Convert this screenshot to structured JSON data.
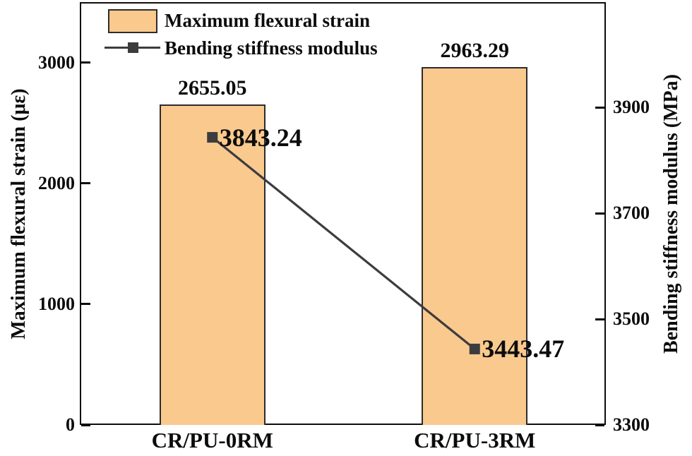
{
  "chart_data": {
    "type": "bar",
    "subtype": "dual-axis bar + line",
    "categories": [
      "CR/PU-0RM",
      "CR/PU-3RM"
    ],
    "series": [
      {
        "name": "Maximum flexural strain",
        "type": "bar",
        "axis": "left",
        "values": [
          2655.05,
          2963.29
        ],
        "labels": [
          "2655.05",
          "2963.29"
        ]
      },
      {
        "name": "Bending stiffness modulus",
        "type": "line",
        "axis": "right",
        "marker": "square",
        "values": [
          3843.24,
          3443.47
        ],
        "labels": [
          "3843.24",
          "3443.47"
        ]
      }
    ],
    "left_axis": {
      "label": "Maximum flexural strain (με)",
      "ticks": [
        0,
        1000,
        2000,
        3000
      ],
      "range": [
        0,
        3491
      ]
    },
    "right_axis": {
      "label": "Bending stiffness modulus (MPa)",
      "ticks": [
        3300,
        3500,
        3700,
        3900
      ],
      "range": [
        3300,
        4096
      ]
    },
    "legend": {
      "position": "top-left",
      "entries": [
        "Maximum flexural strain",
        "Bending stiffness modulus"
      ]
    },
    "grid": false,
    "title": ""
  },
  "colors": {
    "bar_fill": "#F9C98E",
    "bar_edge": "#2C2C2C",
    "line": "#3B3C3E",
    "marker": "#3B3C3E",
    "text": "#0C0C0C",
    "spine": "#0C0C0C",
    "background": "#FFFFFF"
  }
}
